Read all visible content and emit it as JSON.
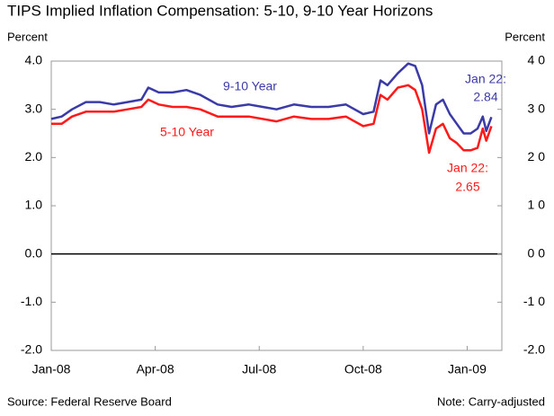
{
  "chart_data": {
    "type": "line",
    "title": "TIPS Implied Inflation Compensation: 5-10, 9-10 Year Horizons",
    "y_label": "Percent",
    "y2_label": "Percent",
    "source": "Source: Federal Reserve Board",
    "note": "Note: Carry-adjusted",
    "xlim": [
      0,
      13
    ],
    "xticks": [
      {
        "value": 0,
        "label": "Jan-08"
      },
      {
        "value": 3,
        "label": "Apr-08"
      },
      {
        "value": 6,
        "label": "Jul-08"
      },
      {
        "value": 9,
        "label": "Oct-08"
      },
      {
        "value": 12,
        "label": "Jan-09"
      }
    ],
    "ylim": [
      -2,
      4
    ],
    "yticks": [
      {
        "value": 4,
        "label": "4.0"
      },
      {
        "value": 3,
        "label": "3.0"
      },
      {
        "value": 2,
        "label": "2.0"
      },
      {
        "value": 1,
        "label": "1.0"
      },
      {
        "value": 0,
        "label": "0.0"
      },
      {
        "value": -1,
        "label": "-1.0"
      },
      {
        "value": -2,
        "label": "-2.0"
      }
    ],
    "y2lim": [
      -2,
      4
    ],
    "y2ticks": [
      {
        "value": 4,
        "label": "4 0"
      },
      {
        "value": 3,
        "label": "3 0"
      },
      {
        "value": 2,
        "label": "2 0"
      },
      {
        "value": 1,
        "label": "1 0"
      },
      {
        "value": 0,
        "label": "0 0"
      },
      {
        "value": -1,
        "label": "-1 0"
      },
      {
        "value": -2,
        "label": "-2.0"
      }
    ],
    "x": [
      0,
      0.3,
      0.6,
      1.0,
      1.4,
      1.8,
      2.2,
      2.6,
      2.8,
      3.1,
      3.5,
      3.9,
      4.3,
      4.8,
      5.2,
      5.7,
      6.1,
      6.5,
      7.0,
      7.5,
      8.0,
      8.5,
      9.0,
      9.3,
      9.5,
      9.7,
      10.0,
      10.3,
      10.5,
      10.7,
      10.9,
      11.1,
      11.3,
      11.5,
      11.7,
      11.9,
      12.1,
      12.3,
      12.45,
      12.55,
      12.7
    ],
    "series": [
      {
        "name": "9-10 Year",
        "color": "#3b3ba8",
        "values": [
          2.8,
          2.85,
          3.0,
          3.15,
          3.15,
          3.1,
          3.15,
          3.2,
          3.45,
          3.35,
          3.35,
          3.4,
          3.3,
          3.1,
          3.05,
          3.1,
          3.05,
          3.0,
          3.1,
          3.05,
          3.05,
          3.1,
          2.9,
          2.95,
          3.6,
          3.5,
          3.75,
          3.95,
          3.9,
          3.5,
          2.5,
          3.1,
          3.2,
          2.9,
          2.7,
          2.5,
          2.5,
          2.6,
          2.85,
          2.55,
          2.84
        ]
      },
      {
        "name": "5-10 Year",
        "color": "#ff1a1a",
        "values": [
          2.7,
          2.7,
          2.85,
          2.95,
          2.95,
          2.95,
          3.0,
          3.05,
          3.2,
          3.1,
          3.05,
          3.05,
          3.0,
          2.85,
          2.85,
          2.85,
          2.8,
          2.75,
          2.85,
          2.8,
          2.8,
          2.85,
          2.65,
          2.7,
          3.3,
          3.2,
          3.45,
          3.5,
          3.4,
          3.0,
          2.1,
          2.6,
          2.7,
          2.4,
          2.3,
          2.15,
          2.15,
          2.2,
          2.6,
          2.35,
          2.65
        ]
      }
    ],
    "annotations": [
      {
        "text": "Jan 22:",
        "color": "#3b3ba8"
      },
      {
        "text": "2.84",
        "color": "#3b3ba8"
      },
      {
        "text": "Jan 22:",
        "color": "#ff1a1a"
      },
      {
        "text": "2.65",
        "color": "#ff1a1a"
      }
    ]
  }
}
